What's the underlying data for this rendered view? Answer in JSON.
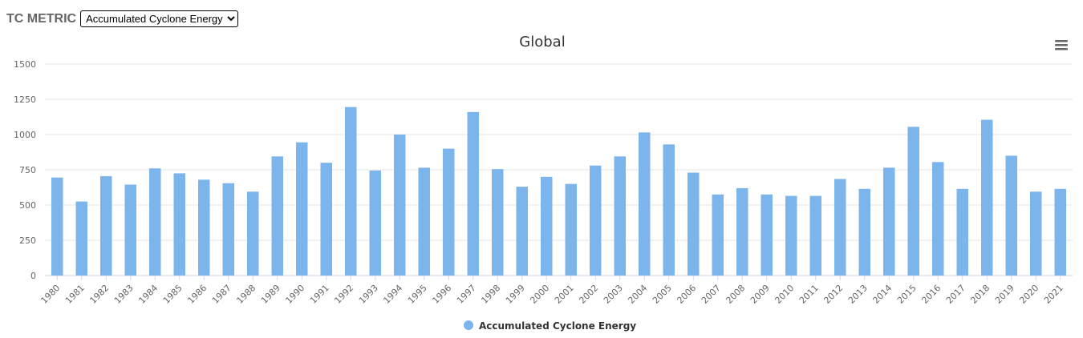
{
  "controls": {
    "metric_label": "TC METRIC",
    "selected_metric": "Accumulated Cyclone Energy",
    "options": [
      "Accumulated Cyclone Energy"
    ]
  },
  "menu_icon": "hamburger-menu-icon",
  "colors": {
    "bar": "#7cb5ec",
    "grid": "#e6e6e6",
    "axis": "#ccd6eb"
  },
  "chart_data": {
    "type": "bar",
    "title": "Global",
    "xlabel": "",
    "ylabel": "",
    "ylim": [
      0,
      1500
    ],
    "yticks": [
      0,
      250,
      500,
      750,
      1000,
      1250,
      1500
    ],
    "ytick_labels": [
      "0",
      "250",
      "500",
      "750",
      "1000",
      "1250",
      "1500"
    ],
    "grid": true,
    "legend_position": "bottom-center",
    "categories": [
      "1980",
      "1981",
      "1982",
      "1983",
      "1984",
      "1985",
      "1986",
      "1987",
      "1988",
      "1989",
      "1990",
      "1991",
      "1992",
      "1993",
      "1994",
      "1995",
      "1996",
      "1997",
      "1998",
      "1999",
      "2000",
      "2001",
      "2002",
      "2003",
      "2004",
      "2005",
      "2006",
      "2007",
      "2008",
      "2009",
      "2010",
      "2011",
      "2012",
      "2013",
      "2014",
      "2015",
      "2016",
      "2017",
      "2018",
      "2019",
      "2020",
      "2021"
    ],
    "series": [
      {
        "name": "Accumulated Cyclone Energy",
        "values": [
          695,
          525,
          705,
          645,
          760,
          725,
          680,
          655,
          595,
          845,
          945,
          800,
          1195,
          745,
          1000,
          765,
          900,
          1160,
          755,
          630,
          700,
          650,
          780,
          845,
          1015,
          930,
          730,
          575,
          620,
          575,
          565,
          565,
          685,
          615,
          765,
          1055,
          805,
          615,
          1105,
          850,
          595,
          615
        ]
      }
    ]
  }
}
